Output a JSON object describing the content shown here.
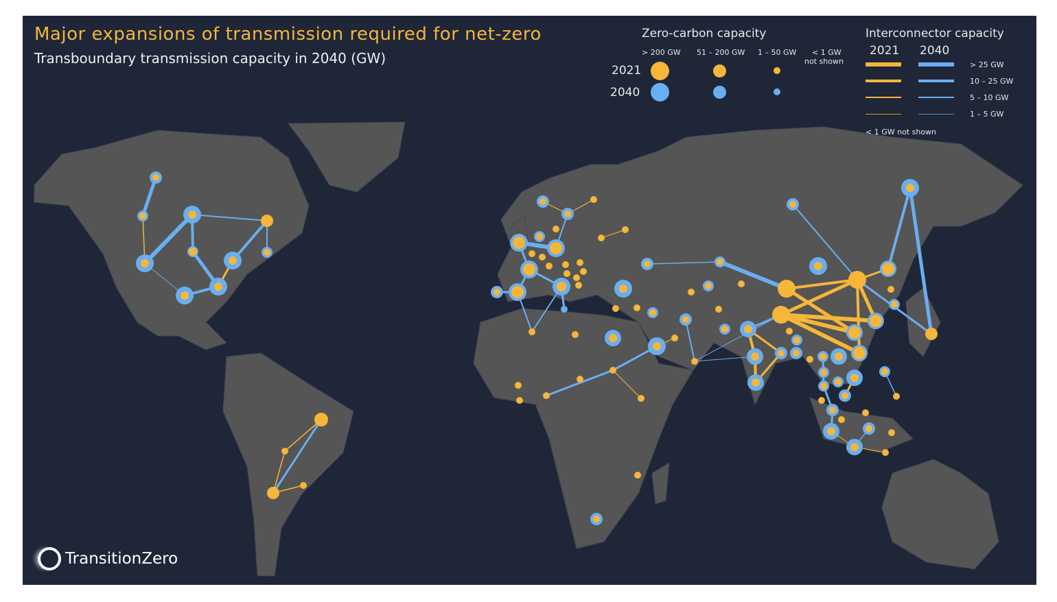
{
  "title": "Major expansions of transmission required for net-zero",
  "subtitle": "Transboundary transmission capacity in 2040 (GW)",
  "colors": {
    "background": "#1f2638",
    "land": "#555555",
    "year_2021": "#f5b63a",
    "year_2040": "#6aaef0"
  },
  "zero_carbon_legend": {
    "heading": "Zero-carbon capacity",
    "classes": [
      "> 200 GW",
      "51 – 200 GW",
      "1 – 50 GW"
    ],
    "note_line1": "< 1 GW",
    "note_line2": "not shown",
    "years": [
      "2021",
      "2040"
    ]
  },
  "interconnector_legend": {
    "heading": "Interconnector capacity",
    "years": [
      "2021",
      "2040"
    ],
    "classes": [
      "> 25 GW",
      "10 – 25 GW",
      "5 – 10 GW",
      "1 – 5 GW"
    ],
    "note": "< 1 GW not shown"
  },
  "logo_text": "TransitionZero"
}
